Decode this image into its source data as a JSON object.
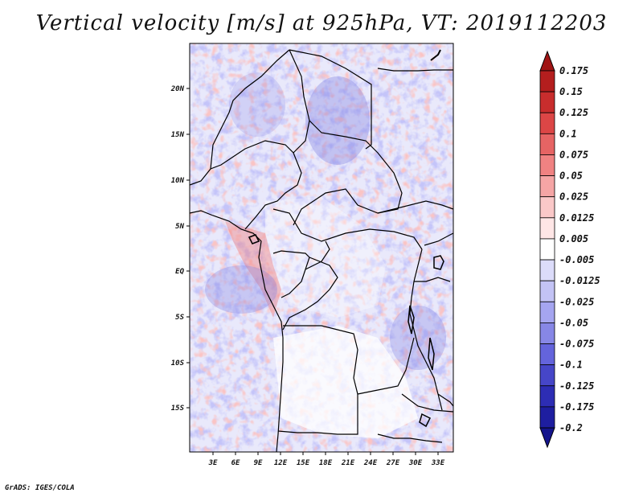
{
  "title": "Vertical velocity [m/s] at 925hPa, VT: 2019112203",
  "credit": "GrADS: IGES/COLA",
  "map": {
    "lat_labels": [
      "20N",
      "15N",
      "10N",
      "5N",
      "EQ",
      "5S",
      "10S",
      "15S"
    ],
    "lon_labels": [
      "3E",
      "6E",
      "9E",
      "12E",
      "15E",
      "18E",
      "21E",
      "24E",
      "27E",
      "30E",
      "33E"
    ]
  },
  "colorbar": {
    "labels": [
      "0.175",
      "0.15",
      "0.125",
      "0.1",
      "0.075",
      "0.05",
      "0.025",
      "0.0125",
      "0.005",
      "-0.005",
      "-0.0125",
      "-0.025",
      "-0.05",
      "-0.075",
      "-0.1",
      "-0.125",
      "-0.175",
      "-0.2"
    ],
    "colors": [
      "#a01414",
      "#b41e1e",
      "#c82d2d",
      "#dc4646",
      "#e66464",
      "#f08282",
      "#f5a5a5",
      "#fac8c8",
      "#ffe6e6",
      "#ffffff",
      "#dcdcfa",
      "#c3c3f5",
      "#a5a5f0",
      "#8787e6",
      "#6464dc",
      "#4646c8",
      "#2d2db4",
      "#1e1ea0",
      "#14148c"
    ]
  }
}
